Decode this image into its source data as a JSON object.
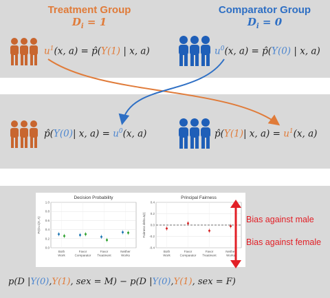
{
  "treatment": {
    "title": "Treatment Group",
    "assign": "D_i = 1"
  },
  "comparator": {
    "title": "Comparator Group",
    "assign": "D_i = 0"
  },
  "eq": {
    "top_left": {
      "lhs": "u",
      "sup": "1",
      "args": "(x, a) = p̂(",
      "y": "Y(1)",
      "rest": " | x, a)"
    },
    "top_right": {
      "lhs": "u",
      "sup": "0",
      "args": "(x, a) = p̂(",
      "y": "Y(0)",
      "rest": " | x, a)"
    },
    "bot_left": {
      "pre": "p̂(",
      "y": "Y(0)",
      "mid": "| x, a) = ",
      "u": "u",
      "sup": "0",
      "post": "(x, a)"
    },
    "bot_right": {
      "pre": "p̂(",
      "y": "Y(1)",
      "mid": "| x, a) = ",
      "u": "u",
      "sup": "1",
      "post": "(x, a)"
    }
  },
  "colors": {
    "orange": "#e07b39",
    "blue": "#2e6fc4",
    "red": "#e21f26",
    "band": "#d9d9d9"
  },
  "chart_data": [
    {
      "type": "scatter",
      "title": "Decision Probability",
      "ylabel": "Pr(D=1|X, A)",
      "ylim": [
        0.0,
        1.0
      ],
      "yticks": [
        "0.0",
        "0.2",
        "0.4",
        "0.6",
        "0.8",
        "1.0"
      ],
      "categories": [
        "Both Work",
        "Favor Comparator",
        "Favor Treatment",
        "Neither Works"
      ],
      "series": [
        {
          "color": "#1f77b4",
          "values": [
            0.3,
            0.28,
            0.24,
            0.34
          ]
        },
        {
          "color": "#2ca02c",
          "values": [
            0.26,
            0.3,
            0.17,
            0.33
          ]
        }
      ],
      "grid": true
    },
    {
      "type": "scatter",
      "title": "Principal Fairness",
      "ylabel": "Fairness delta Δ(r)",
      "ylim": [
        -0.4,
        0.4
      ],
      "yticks": [
        "-0.4",
        "-0.2",
        "0.0",
        "0.2",
        "0.4"
      ],
      "categories": [
        "Both Work",
        "Favor Comparator",
        "Favor Treatment",
        "Neither Works"
      ],
      "series": [
        {
          "color": "#d62728",
          "values": [
            -0.06,
            0.03,
            -0.1,
            -0.02
          ]
        }
      ],
      "reference_line": 0.0,
      "grid": true
    }
  ],
  "bias": {
    "male": "Bias against male",
    "female": "Bias against female"
  },
  "bottom_formula": {
    "p1": "p(D |",
    "y0": "Y(0)",
    "c1": ",",
    "y1": "Y(1)",
    "t1": ",  sex = M) − p(D |",
    "y0b": "Y(0)",
    "c2": ",",
    "y1b": "Y(1)",
    "t2": ",  sex = F)"
  }
}
